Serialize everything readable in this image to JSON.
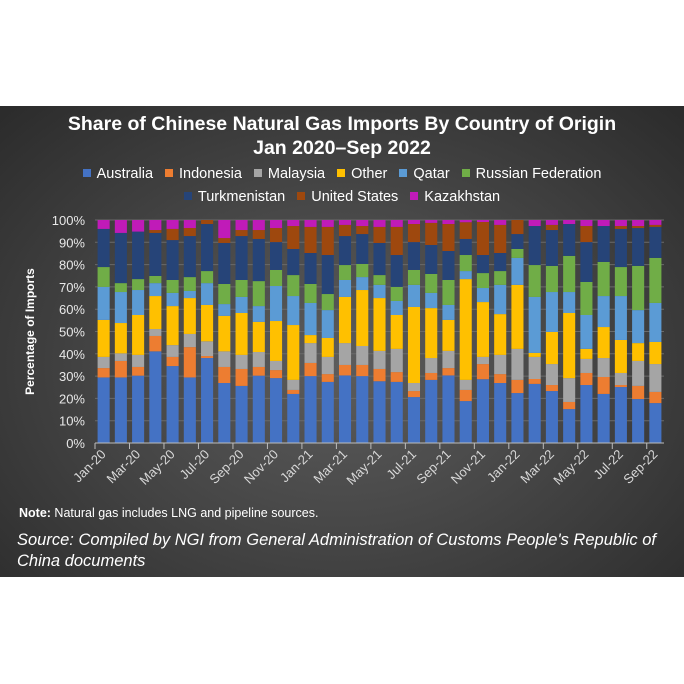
{
  "chart_data": {
    "type": "bar",
    "stacked": true,
    "title": "Share of Chinese Natural Gas Imports By Country of Origin",
    "subtitle": "Jan 2020–Sep 2022",
    "xlabel": "",
    "ylabel": "Percentage of Imports",
    "ylim": [
      0,
      100
    ],
    "yticks": [
      "0%",
      "10%",
      "20%",
      "30%",
      "40%",
      "50%",
      "60%",
      "70%",
      "80%",
      "90%",
      "100%"
    ],
    "grid": true,
    "legend_position": "top",
    "categories": [
      "Jan-20",
      "Feb-20",
      "Mar-20",
      "Apr-20",
      "May-20",
      "Jun-20",
      "Jul-20",
      "Aug-20",
      "Sep-20",
      "Oct-20",
      "Nov-20",
      "Dec-20",
      "Jan-21",
      "Feb-21",
      "Mar-21",
      "Apr-21",
      "May-21",
      "Jun-21",
      "Jul-21",
      "Aug-21",
      "Sep-21",
      "Oct-21",
      "Nov-21",
      "Dec-21",
      "Jan-22",
      "Feb-22",
      "Mar-22",
      "Apr-22",
      "May-22",
      "Jun-22",
      "Jul-22",
      "Aug-22",
      "Sep-22"
    ],
    "tick_labels": [
      "Jan-20",
      "Mar-20",
      "May-20",
      "Jul-20",
      "Sep-20",
      "Nov-20",
      "Jan-21",
      "Mar-21",
      "May-21",
      "Jul-21",
      "Sep-21",
      "Nov-21",
      "Jan-22",
      "Mar-22",
      "May-22",
      "Jul-22",
      "Sep-22"
    ],
    "series": [
      {
        "name": "Australia",
        "color": "#4472c4",
        "values": [
          29.4,
          29.4,
          30.2,
          41.1,
          34.5,
          29.4,
          38.1,
          26.9,
          25.6,
          30.2,
          29.1,
          22.0,
          30.0,
          27.4,
          30.3,
          30.0,
          27.7,
          27.4,
          20.6,
          28.3,
          30.3,
          18.8,
          28.6,
          26.9,
          22.4,
          26.5,
          23.3,
          15.2,
          26.0,
          22.0,
          25.1,
          19.7,
          17.9
        ]
      },
      {
        "name": "Indonesia",
        "color": "#ed7d31",
        "values": [
          4.2,
          7.4,
          3.9,
          6.9,
          4.1,
          13.6,
          0.9,
          7.2,
          7.6,
          3.9,
          3.6,
          1.8,
          5.9,
          3.5,
          4.7,
          5.0,
          5.5,
          4.4,
          2.7,
          3.1,
          3.3,
          5.0,
          6.8,
          4.0,
          5.9,
          2.2,
          2.7,
          3.2,
          5.4,
          7.6,
          0.9,
          5.9,
          5.0
        ]
      },
      {
        "name": "Malaysia",
        "color": "#a5a5a5",
        "values": [
          5.0,
          3.4,
          5.4,
          3.1,
          5.3,
          5.9,
          6.6,
          7.0,
          6.3,
          6.7,
          4.1,
          4.5,
          8.9,
          7.7,
          9.8,
          8.5,
          8.1,
          10.4,
          3.6,
          6.7,
          7.7,
          4.5,
          3.2,
          8.6,
          13.9,
          9.9,
          9.4,
          10.7,
          6.3,
          8.5,
          5.4,
          11.2,
          12.5
        ]
      },
      {
        "name": "Other",
        "color": "#ffc000",
        "values": [
          16.6,
          13.6,
          17.9,
          14.8,
          17.5,
          16.1,
          16.3,
          15.9,
          18.8,
          13.5,
          17.9,
          24.6,
          3.6,
          8.5,
          20.7,
          25.1,
          23.7,
          15.2,
          34.1,
          22.4,
          13.9,
          45.2,
          24.6,
          18.3,
          28.7,
          1.8,
          14.4,
          29.2,
          4.5,
          13.9,
          14.8,
          8.0,
          9.9
        ]
      },
      {
        "name": "Qatar",
        "color": "#5b9bd5",
        "values": [
          14.8,
          13.9,
          11.2,
          5.8,
          5.9,
          3.2,
          9.8,
          5.3,
          7.2,
          7.1,
          15.7,
          13.0,
          14.4,
          12.5,
          7.6,
          5.8,
          5.9,
          6.3,
          9.9,
          6.8,
          6.7,
          3.6,
          6.3,
          13.1,
          12.1,
          25.1,
          17.9,
          9.4,
          15.2,
          13.9,
          19.7,
          14.8,
          17.5
        ]
      },
      {
        "name": "Russian Federation",
        "color": "#70ad47",
        "values": [
          8.9,
          4.0,
          4.9,
          3.2,
          5.8,
          6.2,
          5.4,
          9.0,
          7.6,
          11.2,
          7.2,
          9.4,
          8.5,
          7.2,
          6.7,
          5.9,
          4.4,
          6.3,
          6.7,
          8.5,
          11.2,
          7.2,
          6.7,
          6.2,
          4.0,
          14.3,
          11.7,
          16.2,
          14.8,
          15.3,
          13.0,
          19.8,
          20.2
        ]
      },
      {
        "name": "Turkmenistan",
        "color": "#264478",
        "values": [
          17.1,
          22.5,
          21.3,
          19.3,
          17.9,
          18.4,
          21.1,
          18.4,
          19.7,
          18.9,
          12.5,
          11.7,
          13.9,
          17.5,
          13.0,
          13.4,
          14.4,
          14.3,
          12.5,
          13.0,
          13.0,
          7.2,
          8.1,
          8.1,
          6.7,
          17.5,
          16.1,
          14.3,
          17.9,
          16.1,
          17.1,
          17.0,
          13.9
        ]
      },
      {
        "name": "United States",
        "color": "#9e480e",
        "values": [
          0,
          0,
          0,
          1.3,
          5.0,
          3.6,
          1.8,
          2.2,
          2.7,
          4.0,
          6.3,
          10.3,
          11.7,
          12.6,
          5.0,
          3.6,
          7.2,
          12.6,
          8.1,
          9.9,
          12.1,
          7.5,
          14.8,
          12.6,
          6.3,
          0,
          2.3,
          0,
          7.2,
          0,
          1.3,
          0.9,
          0.9
        ]
      },
      {
        "name": "Kazakhstan",
        "color": "#c01bb8",
        "values": [
          4.0,
          5.8,
          5.2,
          4.5,
          4.0,
          3.6,
          0,
          8.1,
          4.5,
          4.5,
          3.6,
          2.7,
          3.1,
          3.1,
          2.2,
          2.7,
          3.1,
          3.1,
          1.8,
          1.3,
          1.8,
          1.0,
          0.9,
          2.2,
          0,
          2.7,
          2.2,
          1.8,
          2.7,
          2.7,
          2.7,
          2.7,
          2.2
        ]
      }
    ]
  },
  "note": {
    "label": "Note:",
    "text": " Natural gas includes LNG and pipeline sources."
  },
  "source": "Source: Compiled by NGI from General Administration of Customs People's Republic of China documents"
}
